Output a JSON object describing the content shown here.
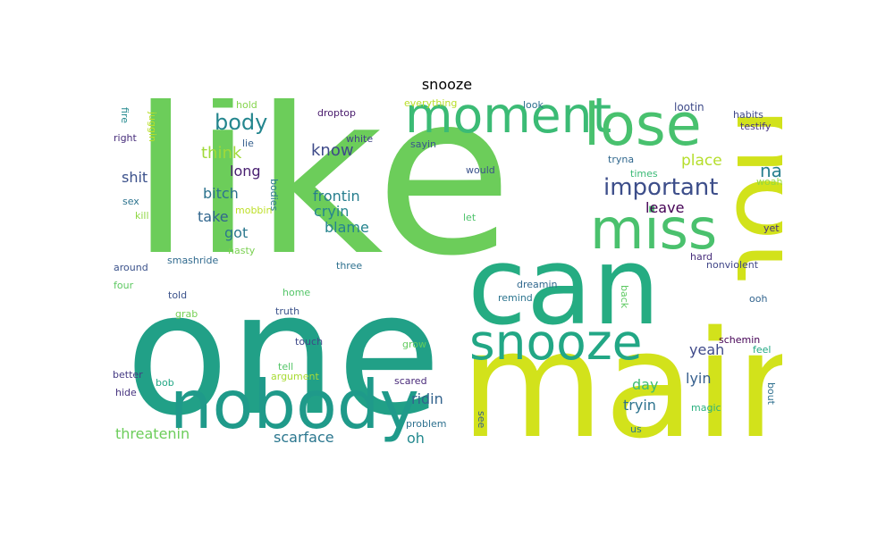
{
  "title": "snooze",
  "words": [
    {
      "text": "like",
      "color": "#6ccd5a"
    },
    {
      "text": "one",
      "color": "#21a087"
    },
    {
      "text": "not",
      "color": "#d2e21b"
    },
    {
      "text": "main",
      "color": "#d2e21b"
    },
    {
      "text": "can",
      "color": "#25ac82"
    },
    {
      "text": "moment",
      "color": "#3bbb75"
    },
    {
      "text": "lose",
      "color": "#48c16e"
    },
    {
      "text": "miss",
      "color": "#4ac16d"
    },
    {
      "text": "nobody",
      "color": "#1f9a8a"
    },
    {
      "text": "snooze",
      "color": "#22a785"
    },
    {
      "text": "important",
      "color": "#3d4e8a"
    },
    {
      "text": "body",
      "color": "#24868e"
    },
    {
      "text": "nah",
      "color": "#277f8e"
    },
    {
      "text": "think",
      "color": "#a0da39"
    },
    {
      "text": "place",
      "color": "#b5de2b"
    },
    {
      "text": "know",
      "color": "#3e4a89"
    },
    {
      "text": "long",
      "color": "#481f70"
    },
    {
      "text": "shit",
      "color": "#3b518b"
    },
    {
      "text": "bitch",
      "color": "#2c728e"
    },
    {
      "text": "frontin",
      "color": "#277e8e"
    },
    {
      "text": "leave",
      "color": "#440154"
    },
    {
      "text": "cryin",
      "color": "#25858e"
    },
    {
      "text": "take",
      "color": "#31668e"
    },
    {
      "text": "blame",
      "color": "#25848e"
    },
    {
      "text": "got",
      "color": "#2a778e"
    },
    {
      "text": "yeah",
      "color": "#3e4989"
    },
    {
      "text": "lyin",
      "color": "#355f8d"
    },
    {
      "text": "day",
      "color": "#3dbc74"
    },
    {
      "text": "tryin",
      "color": "#2c728e"
    },
    {
      "text": "ridin",
      "color": "#33638d"
    },
    {
      "text": "threatenin",
      "color": "#6ccd5a"
    },
    {
      "text": "scarface",
      "color": "#2a768e"
    },
    {
      "text": "oh",
      "color": "#23898e"
    },
    {
      "text": "lootin",
      "color": "#3e4a89"
    },
    {
      "text": "habits",
      "color": "#3f4788"
    },
    {
      "text": "testify",
      "color": "#463480"
    },
    {
      "text": "hold",
      "color": "#84d44b"
    },
    {
      "text": "droptop",
      "color": "#481a6c"
    },
    {
      "text": "look",
      "color": "#2d708e"
    },
    {
      "text": "everything",
      "color": "#b8de29"
    },
    {
      "text": "fire",
      "color": "#23898e"
    },
    {
      "text": "juggin",
      "color": "#b8de29"
    },
    {
      "text": "right",
      "color": "#472d7b"
    },
    {
      "text": "lie",
      "color": "#355f8d"
    },
    {
      "text": "white",
      "color": "#414487"
    },
    {
      "text": "sayin",
      "color": "#39568c"
    },
    {
      "text": "tryna",
      "color": "#31688e"
    },
    {
      "text": "times",
      "color": "#3aba76"
    },
    {
      "text": "woah",
      "color": "#95d840"
    },
    {
      "text": "would",
      "color": "#3b528b"
    },
    {
      "text": "sex",
      "color": "#2c738e"
    },
    {
      "text": "kill",
      "color": "#8fd744"
    },
    {
      "text": "bodies",
      "color": "#2a788e"
    },
    {
      "text": "mobbin",
      "color": "#bddf26"
    },
    {
      "text": "let",
      "color": "#4ec36b"
    },
    {
      "text": "yet",
      "color": "#46327e"
    },
    {
      "text": "nasty",
      "color": "#7ad151"
    },
    {
      "text": "around",
      "color": "#3b528b"
    },
    {
      "text": "smashride",
      "color": "#306a8e"
    },
    {
      "text": "three",
      "color": "#2d708e"
    },
    {
      "text": "hard",
      "color": "#472d7b"
    },
    {
      "text": "nonviolent",
      "color": "#404688"
    },
    {
      "text": "four",
      "color": "#5ec962"
    },
    {
      "text": "dreamin",
      "color": "#31688e"
    },
    {
      "text": "told",
      "color": "#3b528b"
    },
    {
      "text": "home",
      "color": "#54c568"
    },
    {
      "text": "remind",
      "color": "#2b748e"
    },
    {
      "text": "back",
      "color": "#5ec962"
    },
    {
      "text": "ooh",
      "color": "#32648e"
    },
    {
      "text": "grab",
      "color": "#75d054"
    },
    {
      "text": "truth",
      "color": "#3b528b"
    },
    {
      "text": "touch",
      "color": "#3e4989"
    },
    {
      "text": "grow",
      "color": "#62cb5f"
    },
    {
      "text": "schemin",
      "color": "#440154"
    },
    {
      "text": "feel",
      "color": "#22a884"
    },
    {
      "text": "better",
      "color": "#443a83"
    },
    {
      "text": "tell",
      "color": "#54c568"
    },
    {
      "text": "argument",
      "color": "#a8db34"
    },
    {
      "text": "scared",
      "color": "#482979"
    },
    {
      "text": "hide",
      "color": "#46337f"
    },
    {
      "text": "bob",
      "color": "#22a785"
    },
    {
      "text": "magic",
      "color": "#2ab07f"
    },
    {
      "text": "bout",
      "color": "#2e6f8e"
    },
    {
      "text": "problem",
      "color": "#2d708e"
    },
    {
      "text": "see",
      "color": "#355f8d"
    },
    {
      "text": "us",
      "color": "#2a788e"
    }
  ]
}
